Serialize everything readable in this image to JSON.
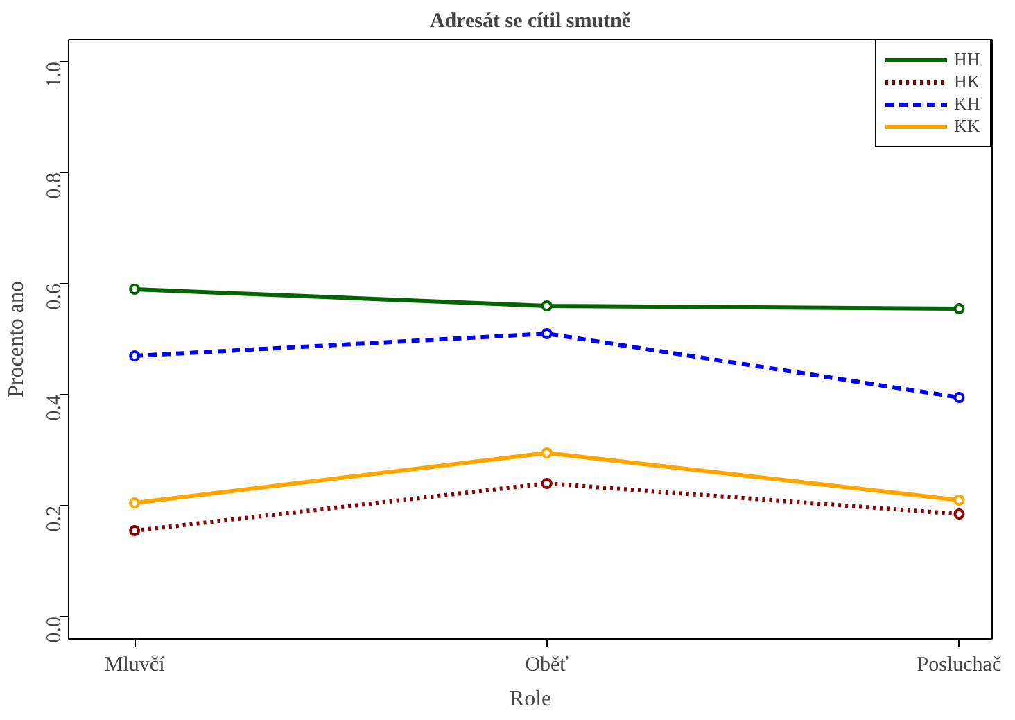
{
  "chart_data": {
    "type": "line",
    "title": "Adresát se cítil smutně",
    "xlabel": "Role",
    "ylabel": "Procento ano",
    "categories": [
      "Mluvčí",
      "Oběť",
      "Posluchač"
    ],
    "ylim": [
      -0.04,
      1.04
    ],
    "yticks": [
      {
        "value": 0,
        "label": "0.0"
      },
      {
        "value": 0.2,
        "label": "0.2"
      },
      {
        "value": 0.4,
        "label": "0.4"
      },
      {
        "value": 0.6,
        "label": "0.6"
      },
      {
        "value": 0.8,
        "label": "0.8"
      },
      {
        "value": 1,
        "label": "1.0"
      }
    ],
    "series": [
      {
        "name": "HH",
        "color": "#006400",
        "values": [
          0.59,
          0.56,
          0.555
        ],
        "line_style": "solid"
      },
      {
        "name": "HK",
        "color": "#8b0000",
        "values": [
          0.155,
          0.24,
          0.185
        ],
        "line_style": "dotted"
      },
      {
        "name": "KH",
        "color": "#0000ff",
        "values": [
          0.47,
          0.51,
          0.395
        ],
        "line_style": "dashed"
      },
      {
        "name": "KK",
        "color": "#ffa500",
        "values": [
          0.205,
          0.295,
          0.21
        ],
        "line_style": "solid"
      }
    ],
    "marker": "circle",
    "legend": "top right",
    "grid": false
  }
}
